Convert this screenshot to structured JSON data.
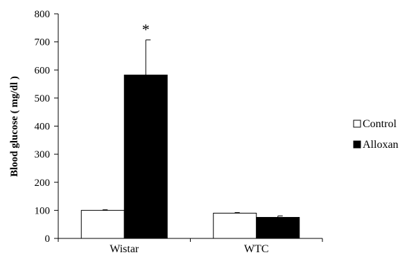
{
  "chart_data": {
    "type": "bar",
    "categories": [
      "Wistar",
      "WTC"
    ],
    "series": [
      {
        "name": "Control",
        "values": [
          100,
          90
        ],
        "errors": [
          2,
          2
        ],
        "color": "#ffffff"
      },
      {
        "name": "Alloxan",
        "values": [
          582,
          75
        ],
        "errors": [
          125,
          5
        ],
        "color": "#000000"
      }
    ],
    "ylabel": "Blood glucose ( mg/dl )",
    "xlabel": "",
    "ylim": [
      0,
      800
    ],
    "yticks": [
      0,
      100,
      200,
      300,
      400,
      500,
      600,
      700,
      800
    ],
    "annotations": [
      {
        "text": "*",
        "category": "Wistar",
        "series": "Alloxan"
      }
    ],
    "legend_position": "right",
    "grid": false
  }
}
